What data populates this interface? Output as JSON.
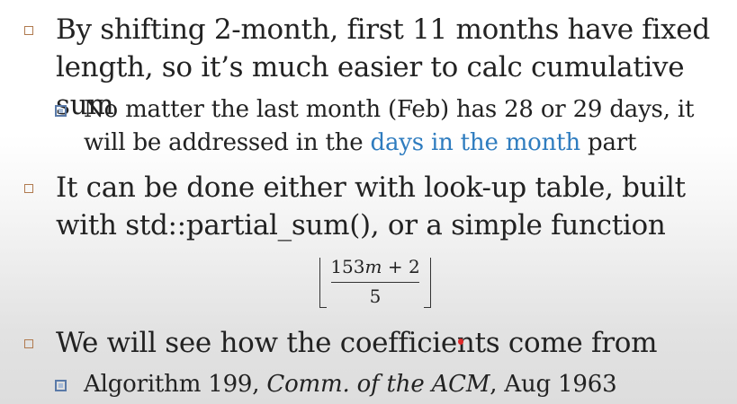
{
  "bullets": [
    {
      "text": "By shifting 2-month, first 11 months have fixed length, so it’s much easier to calc cumulative sum",
      "sub": {
        "text_before": "No matter the last month (Feb) has 28 or 29 days, it will be addressed in the ",
        "highlight": "days in the month",
        "text_after": " part",
        "highlight_color": "#2e7cbf"
      }
    },
    {
      "text": "It can be done either with look-up table, built with std::partial_sum(), or a simple function",
      "formula": {
        "numerator_coef": "153",
        "numerator_var": "m",
        "numerator_rest": " + 2",
        "denominator": "5"
      }
    },
    {
      "text": "We will see how the coefficients come from",
      "sub": {
        "prefix": "Algorithm 199, ",
        "title": "Comm. of the ACM",
        "suffix": ", Aug 1963"
      }
    }
  ],
  "colors": {
    "text": "#222222",
    "bullet_l1_border": "#b07a4f",
    "bullet_l2_border": "#5a7aa8",
    "pointer": "#e02a2a"
  }
}
